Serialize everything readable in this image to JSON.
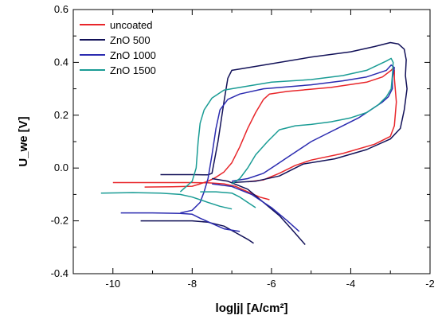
{
  "chart_data": {
    "type": "line",
    "xlabel": "log|j| [A/cm²]",
    "ylabel": "U_we [V]",
    "xlim": [
      -11,
      -2
    ],
    "ylim": [
      -0.4,
      0.6
    ],
    "xticks": [
      "-10",
      "-8",
      "-6",
      "-4",
      "-2"
    ],
    "yticks": [
      "-0.4",
      "-0.2",
      "0.0",
      "0.2",
      "0.4",
      "0.6"
    ],
    "grid": false,
    "legend_position": "top-left",
    "series": [
      {
        "name": "uncoated",
        "color": "#e8262a",
        "segments": [
          [
            [
              -10,
              -0.055
            ],
            [
              -9,
              -0.055
            ],
            [
              -8,
              -0.055
            ],
            [
              -7.6,
              -0.056
            ],
            [
              -7.2,
              -0.06
            ],
            [
              -6.9,
              -0.07
            ],
            [
              -6.6,
              -0.09
            ],
            [
              -6.3,
              -0.11
            ],
            [
              -6.05,
              -0.12
            ]
          ],
          [
            [
              -9.2,
              -0.072
            ],
            [
              -8.5,
              -0.071
            ],
            [
              -8,
              -0.069
            ],
            [
              -7.8,
              -0.06
            ],
            [
              -7.6,
              -0.05
            ],
            [
              -7.4,
              -0.035
            ],
            [
              -7.2,
              -0.015
            ],
            [
              -7.0,
              0.02
            ],
            [
              -6.8,
              0.08
            ],
            [
              -6.6,
              0.15
            ],
            [
              -6.4,
              0.21
            ],
            [
              -6.2,
              0.26
            ],
            [
              -6.05,
              0.28
            ],
            [
              -5.6,
              0.29
            ],
            [
              -4.5,
              0.305
            ],
            [
              -3.6,
              0.325
            ],
            [
              -3.2,
              0.345
            ],
            [
              -2.98,
              0.37
            ],
            [
              -2.92,
              0.38
            ],
            [
              -2.9,
              0.37
            ],
            [
              -2.9,
              0.34
            ],
            [
              -2.85,
              0.25
            ],
            [
              -2.9,
              0.16
            ],
            [
              -3.0,
              0.12
            ],
            [
              -3.4,
              0.09
            ],
            [
              -4.2,
              0.055
            ],
            [
              -5.0,
              0.03
            ],
            [
              -5.4,
              0.01
            ],
            [
              -5.8,
              -0.02
            ],
            [
              -6.2,
              -0.045
            ],
            [
              -6.6,
              -0.052
            ]
          ]
        ]
      },
      {
        "name": "ZnO 500",
        "color": "#121158",
        "segments": [
          [
            [
              -9.3,
              -0.2
            ],
            [
              -8.5,
              -0.2
            ],
            [
              -8.0,
              -0.2
            ],
            [
              -7.6,
              -0.205
            ],
            [
              -7.2,
              -0.22
            ],
            [
              -6.9,
              -0.245
            ],
            [
              -6.6,
              -0.27
            ],
            [
              -6.45,
              -0.285
            ]
          ],
          [
            [
              -8.8,
              -0.025
            ],
            [
              -8.0,
              -0.025
            ],
            [
              -7.6,
              -0.026
            ],
            [
              -7.5,
              -0.02
            ],
            [
              -7.35,
              0.1
            ],
            [
              -7.2,
              0.25
            ],
            [
              -7.1,
              0.34
            ],
            [
              -7.0,
              0.37
            ],
            [
              -6.8,
              0.375
            ],
            [
              -6.0,
              0.395
            ],
            [
              -5.0,
              0.42
            ],
            [
              -4.0,
              0.44
            ],
            [
              -3.4,
              0.46
            ],
            [
              -3.0,
              0.475
            ],
            [
              -2.8,
              0.47
            ],
            [
              -2.65,
              0.45
            ],
            [
              -2.6,
              0.41
            ],
            [
              -2.62,
              0.35
            ],
            [
              -2.58,
              0.3
            ],
            [
              -2.65,
              0.22
            ],
            [
              -2.75,
              0.15
            ],
            [
              -3.0,
              0.11
            ],
            [
              -3.6,
              0.07
            ],
            [
              -4.4,
              0.035
            ],
            [
              -5.2,
              0.015
            ],
            [
              -5.8,
              -0.03
            ],
            [
              -6.4,
              -0.05
            ],
            [
              -7.0,
              -0.055
            ]
          ],
          [
            [
              -7.5,
              -0.04
            ],
            [
              -7.1,
              -0.05
            ],
            [
              -6.6,
              -0.08
            ],
            [
              -6.2,
              -0.13
            ],
            [
              -5.8,
              -0.18
            ],
            [
              -5.5,
              -0.23
            ],
            [
              -5.15,
              -0.29
            ]
          ]
        ]
      },
      {
        "name": "ZnO 1000",
        "color": "#2b2bb0",
        "segments": [
          [
            [
              -9.8,
              -0.17
            ],
            [
              -9.0,
              -0.17
            ],
            [
              -8.3,
              -0.172
            ],
            [
              -8.0,
              -0.175
            ],
            [
              -7.8,
              -0.19
            ],
            [
              -7.5,
              -0.21
            ],
            [
              -7.2,
              -0.23
            ],
            [
              -6.8,
              -0.24
            ]
          ],
          [
            [
              -8.3,
              -0.17
            ],
            [
              -8.0,
              -0.16
            ],
            [
              -7.8,
              -0.13
            ],
            [
              -7.7,
              -0.09
            ],
            [
              -7.6,
              -0.04
            ],
            [
              -7.5,
              0.05
            ],
            [
              -7.4,
              0.15
            ],
            [
              -7.3,
              0.22
            ],
            [
              -7.1,
              0.26
            ],
            [
              -6.8,
              0.28
            ],
            [
              -6.2,
              0.3
            ],
            [
              -5.0,
              0.315
            ],
            [
              -4.2,
              0.33
            ],
            [
              -3.6,
              0.345
            ],
            [
              -3.1,
              0.37
            ],
            [
              -2.98,
              0.39
            ],
            [
              -2.9,
              0.38
            ],
            [
              -2.95,
              0.34
            ],
            [
              -2.95,
              0.3
            ],
            [
              -3.05,
              0.27
            ],
            [
              -3.2,
              0.25
            ],
            [
              -3.5,
              0.22
            ],
            [
              -3.8,
              0.19
            ],
            [
              -4.2,
              0.16
            ],
            [
              -4.6,
              0.13
            ],
            [
              -5.0,
              0.1
            ],
            [
              -5.3,
              0.07
            ],
            [
              -5.6,
              0.04
            ],
            [
              -5.9,
              0.01
            ],
            [
              -6.2,
              -0.02
            ],
            [
              -6.6,
              -0.04
            ],
            [
              -7.0,
              -0.05
            ]
          ],
          [
            [
              -7.5,
              -0.06
            ],
            [
              -7.0,
              -0.07
            ],
            [
              -6.5,
              -0.1
            ],
            [
              -6.0,
              -0.15
            ],
            [
              -5.6,
              -0.2
            ],
            [
              -5.3,
              -0.24
            ]
          ]
        ]
      },
      {
        "name": "ZnO 1500",
        "color": "#1a9c95",
        "segments": [
          [
            [
              -10.3,
              -0.095
            ],
            [
              -9.5,
              -0.093
            ],
            [
              -8.8,
              -0.095
            ],
            [
              -8.3,
              -0.1
            ],
            [
              -8.0,
              -0.11
            ],
            [
              -7.6,
              -0.13
            ],
            [
              -7.3,
              -0.145
            ],
            [
              -7.0,
              -0.155
            ]
          ],
          [
            [
              -8.3,
              -0.09
            ],
            [
              -8.0,
              -0.05
            ],
            [
              -7.9,
              0.0
            ],
            [
              -7.85,
              0.1
            ],
            [
              -7.8,
              0.17
            ],
            [
              -7.7,
              0.22
            ],
            [
              -7.5,
              0.265
            ],
            [
              -7.2,
              0.295
            ],
            [
              -6.8,
              0.305
            ],
            [
              -6.0,
              0.325
            ],
            [
              -5.0,
              0.335
            ],
            [
              -4.2,
              0.35
            ],
            [
              -3.6,
              0.37
            ],
            [
              -3.1,
              0.405
            ],
            [
              -2.98,
              0.415
            ],
            [
              -2.93,
              0.4
            ],
            [
              -2.95,
              0.35
            ],
            [
              -2.98,
              0.3
            ],
            [
              -3.1,
              0.27
            ],
            [
              -3.3,
              0.24
            ],
            [
              -3.6,
              0.21
            ],
            [
              -4.0,
              0.19
            ],
            [
              -4.5,
              0.175
            ],
            [
              -5.0,
              0.165
            ],
            [
              -5.4,
              0.16
            ],
            [
              -5.8,
              0.145
            ],
            [
              -6.1,
              0.1
            ],
            [
              -6.4,
              0.05
            ],
            [
              -6.6,
              0.0
            ],
            [
              -6.8,
              -0.04
            ],
            [
              -7.0,
              -0.06
            ]
          ],
          [
            [
              -7.8,
              -0.09
            ],
            [
              -7.4,
              -0.09
            ],
            [
              -7.0,
              -0.095
            ],
            [
              -6.8,
              -0.11
            ],
            [
              -6.6,
              -0.13
            ],
            [
              -6.4,
              -0.15
            ]
          ]
        ]
      }
    ]
  }
}
